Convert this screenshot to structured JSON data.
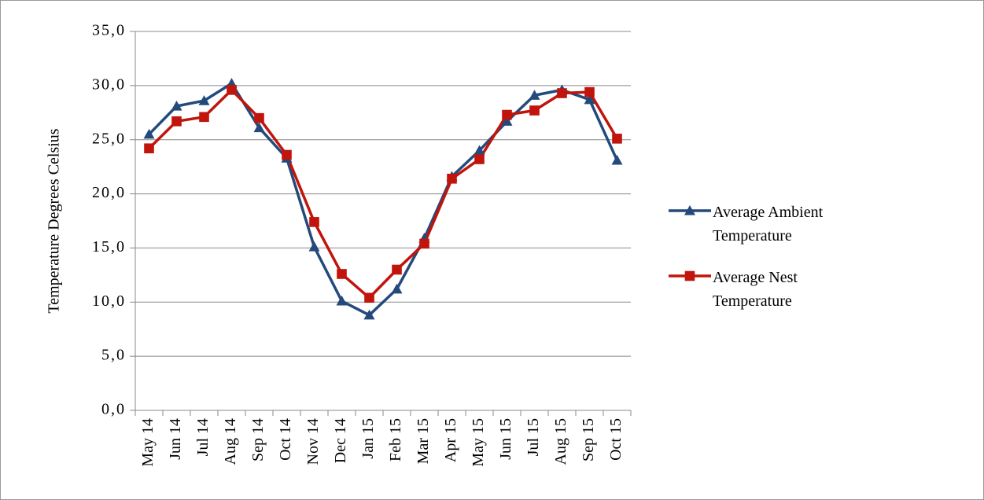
{
  "chart_data": {
    "type": "line",
    "y_label": "Temperature Degrees Celsius",
    "categories": [
      "May 14",
      "Jun 14",
      "Jul 14",
      "Aug 14",
      "Sep 14",
      "Oct 14",
      "Nov 14",
      "Dec 14",
      "Jan 15",
      "Feb 15",
      "Mar 15",
      "Apr 15",
      "May 15",
      "Jun 15",
      "Jul 15",
      "Aug 15",
      "Sep 15",
      "Oct 15"
    ],
    "series": [
      {
        "name": "Average Ambient Temperature",
        "color": "#244a7c",
        "marker": "triangle",
        "values": [
          25.5,
          28.1,
          28.6,
          30.2,
          26.1,
          23.3,
          15.1,
          10.1,
          8.8,
          11.2,
          15.9,
          21.6,
          24.0,
          26.7,
          29.1,
          29.6,
          28.7,
          23.1
        ]
      },
      {
        "name": "Average Nest Temperature",
        "color": "#c0140c",
        "marker": "square",
        "values": [
          24.2,
          26.7,
          27.1,
          29.6,
          27.0,
          23.6,
          17.4,
          12.6,
          10.4,
          13.0,
          15.4,
          21.4,
          23.2,
          27.3,
          27.7,
          29.3,
          29.4,
          25.1
        ]
      }
    ],
    "ylim": [
      0,
      35
    ],
    "yticks": [
      {
        "value": 0,
        "label": "0,0"
      },
      {
        "value": 5,
        "label": "5,0"
      },
      {
        "value": 10,
        "label": "10,0"
      },
      {
        "value": 15,
        "label": "15,0"
      },
      {
        "value": 20,
        "label": "20,0"
      },
      {
        "value": 25,
        "label": "25,0"
      },
      {
        "value": 30,
        "label": "30,0"
      },
      {
        "value": 35,
        "label": "35,0"
      }
    ],
    "grid": true
  }
}
